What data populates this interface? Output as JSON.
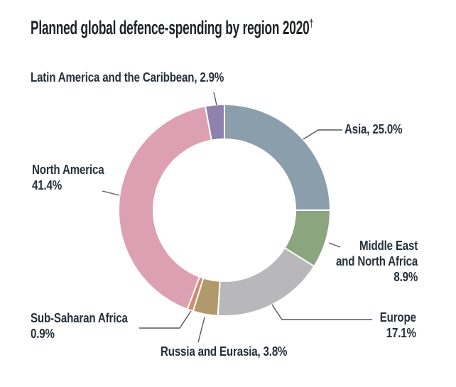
{
  "title": {
    "text": "Planned global defence-spending by region 2020",
    "dagger": "†"
  },
  "chart_data": {
    "type": "pie",
    "subtype": "donut",
    "title": "Planned global defence-spending by region 2020†",
    "unit": "%",
    "start_angle_deg": 0,
    "direction": "clockwise",
    "slices": [
      {
        "label": "Asia",
        "value": 25.0,
        "color": "#8A9EAC"
      },
      {
        "label": "Middle East and North Africa",
        "value": 8.9,
        "color": "#8BA57E"
      },
      {
        "label": "Europe",
        "value": 17.1,
        "color": "#B8B8BA"
      },
      {
        "label": "Russia and Eurasia",
        "value": 3.8,
        "color": "#B09A6B"
      },
      {
        "label": "Sub-Saharan Africa",
        "value": 0.9,
        "color": "#D18B72"
      },
      {
        "label": "North America",
        "value": 41.4,
        "color": "#DDA0B2"
      },
      {
        "label": "Latin America and the Caribbean",
        "value": 2.9,
        "color": "#8F81AD"
      }
    ]
  },
  "labels": {
    "latin_america": {
      "line1": "Latin America and the Caribbean, 2.9%"
    },
    "asia": {
      "line1": "Asia, 25.0%"
    },
    "mena": {
      "line1": "Middle East",
      "line2": "and North Africa",
      "line3": "8.9%"
    },
    "europe": {
      "line1": "Europe",
      "line2": "17.1%"
    },
    "sub_saharan": {
      "line1": "Sub-Saharan Africa",
      "line2": "0.9%"
    },
    "russia": {
      "line1": "Russia and Eurasia, 3.8%"
    },
    "north_america": {
      "line1": "North America",
      "line2": "41.4%"
    }
  }
}
